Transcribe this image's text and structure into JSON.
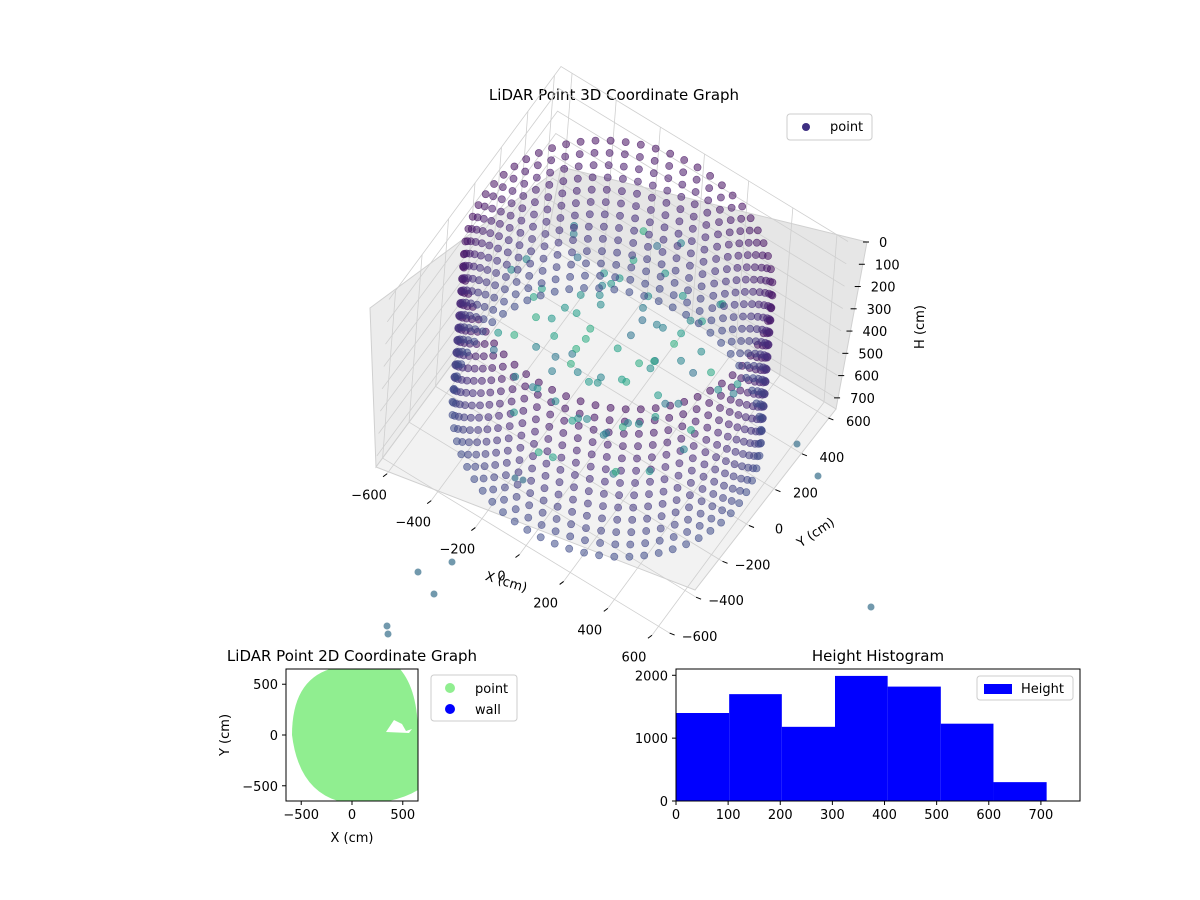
{
  "chart_data": [
    {
      "type": "scatter3d",
      "title": "LiDAR Point 3D Coordinate Graph",
      "xlabel": "X (cm)",
      "ylabel": "Y (cm)",
      "zlabel": "H (cm)",
      "xticks": [
        -600,
        -400,
        -200,
        0,
        200,
        400,
        600
      ],
      "yticks": [
        600,
        400,
        200,
        0,
        -200,
        -400,
        -600
      ],
      "zticks": [
        0,
        100,
        200,
        300,
        400,
        500,
        600,
        700
      ],
      "xlim": [
        -650,
        650
      ],
      "ylim": [
        -650,
        650
      ],
      "zlim": [
        0,
        750
      ],
      "zinverted": true,
      "grid": true,
      "colormap": "viridis",
      "legend": {
        "placement": "top-right",
        "entries": [
          "point"
        ],
        "marker_color": "#3e2f82"
      },
      "shape": {
        "description": "cylindrical ring of points around room perimeter",
        "radius_cm": 600,
        "height_range_cm": [
          0,
          720
        ],
        "outliers": 10
      }
    },
    {
      "type": "scatter",
      "title": "LiDAR Point 2D Coordinate Graph",
      "xlabel": "X (cm)",
      "ylabel": "Y (cm)",
      "xticks": [
        -500,
        0,
        500
      ],
      "yticks": [
        500,
        0,
        -500
      ],
      "xlim": [
        -650,
        650
      ],
      "ylim": [
        -650,
        650
      ],
      "legend": {
        "placement": "outside-right",
        "entries": [
          "point",
          "wall"
        ]
      },
      "series": [
        {
          "name": "point",
          "color": "#90ee90",
          "shape": "filled disk radius ~600 cm"
        },
        {
          "name": "wall",
          "color": "#0000ff",
          "count": 0
        }
      ]
    },
    {
      "type": "bar",
      "title": "Height Histogram",
      "xlabel": "",
      "ylabel": "",
      "xticks": [
        0,
        100,
        200,
        300,
        400,
        500,
        600,
        700
      ],
      "yticks": [
        0,
        1000,
        2000
      ],
      "xlim": [
        0,
        775
      ],
      "ylim": [
        0,
        2100
      ],
      "legend": {
        "placement": "top-right",
        "entries": [
          "Height"
        ]
      },
      "color": "#0000ff",
      "bins": [
        {
          "start": 0,
          "end": 102,
          "count": 1400
        },
        {
          "start": 102,
          "end": 203,
          "count": 1700
        },
        {
          "start": 203,
          "end": 305,
          "count": 1180
        },
        {
          "start": 305,
          "end": 406,
          "count": 1990
        },
        {
          "start": 406,
          "end": 508,
          "count": 1820
        },
        {
          "start": 508,
          "end": 609,
          "count": 1230
        },
        {
          "start": 609,
          "end": 711,
          "count": 300
        }
      ]
    }
  ]
}
